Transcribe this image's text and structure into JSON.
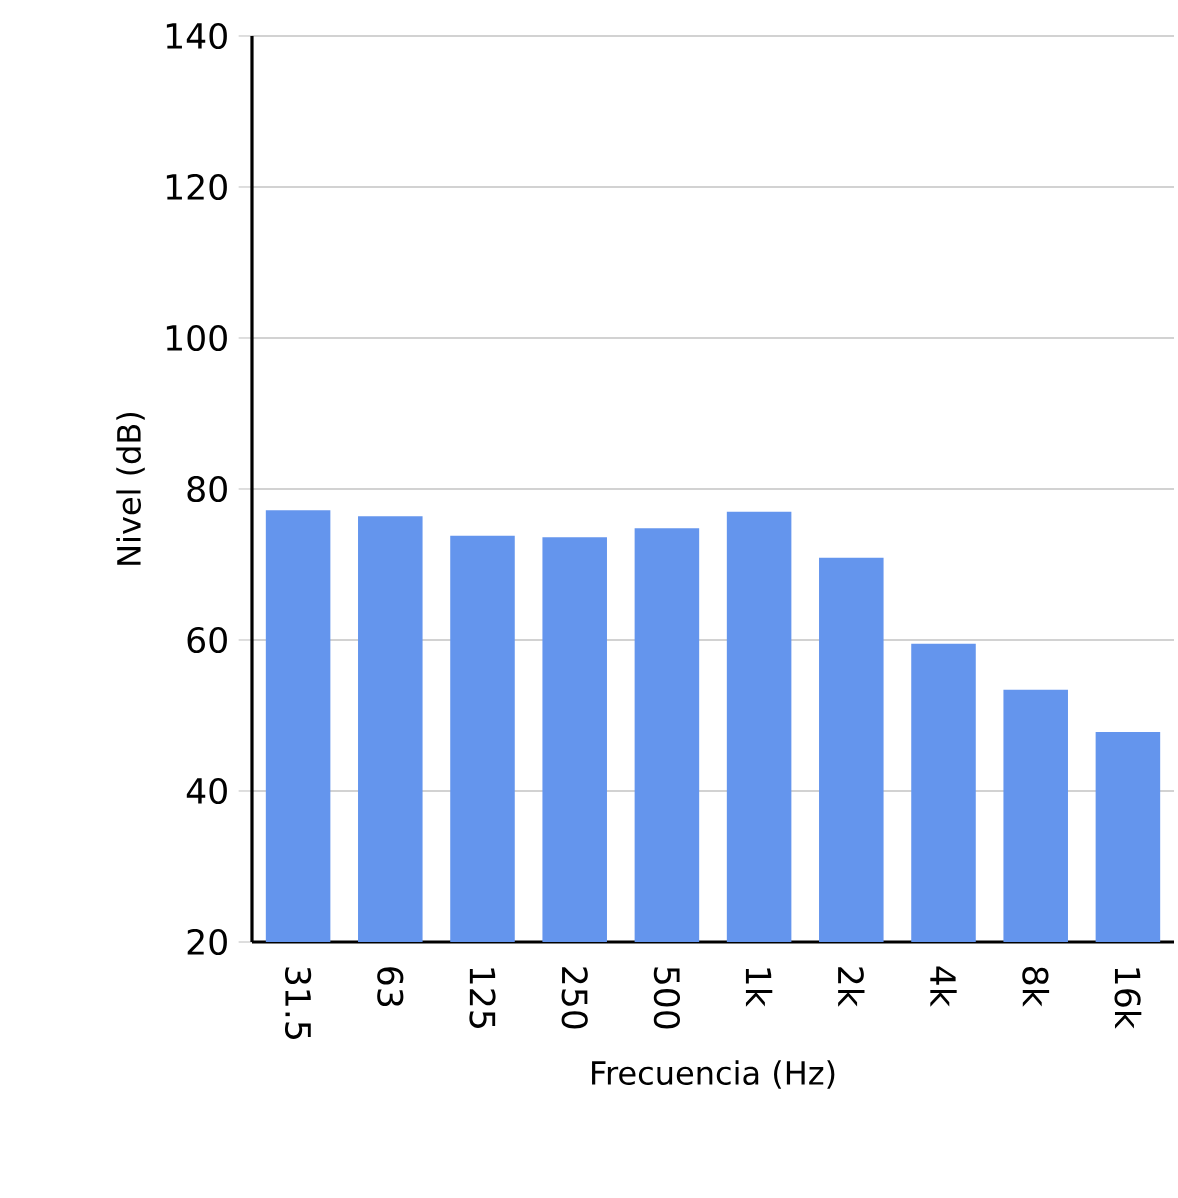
{
  "chart_data": {
    "type": "bar",
    "xlabel": "Frecuencia (Hz)",
    "ylabel": "Nivel (dB)",
    "categories": [
      "31.5",
      "63",
      "125",
      "250",
      "500",
      "1k",
      "2k",
      "4k",
      "8k",
      "16k"
    ],
    "values": [
      77.2,
      76.4,
      73.8,
      73.6,
      74.8,
      77,
      70.9,
      59.5,
      53.4,
      47.8
    ],
    "color": "#6495ed",
    "ylim": [
      20,
      140
    ],
    "yticks": [
      20,
      40,
      60,
      80,
      100,
      120,
      140
    ],
    "grid": "y"
  }
}
